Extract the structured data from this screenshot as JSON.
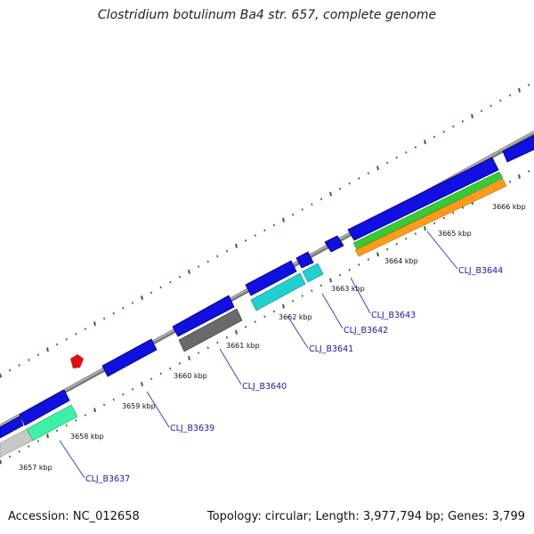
{
  "title": "Clostridium botulinum Ba4 str. 657, complete genome",
  "footer": {
    "accession": "Accession: NC_012658",
    "summary": "Topology: circular; Length: 3,977,794 bp; Genes: 3,799"
  },
  "colors": {
    "backbone": "#8a8a8a",
    "cds": "#1010e0",
    "ticks": "#1a7a1a",
    "labels": "#1a1aa6",
    "marker": "#e01010"
  },
  "kbp_labels": [
    "3657 kbp",
    "3658 kbp",
    "3659 kbp",
    "3660 kbp",
    "3661 kbp",
    "3662 kbp",
    "3663 kbp",
    "3664 kbp",
    "3665 kbp",
    "3666 kbp"
  ],
  "gene_labels": [
    "CLJ_B3637",
    "CLJ_B3639",
    "CLJ_B3640",
    "CLJ_B3641",
    "CLJ_B3642",
    "CLJ_B3643",
    "CLJ_B3644"
  ]
}
